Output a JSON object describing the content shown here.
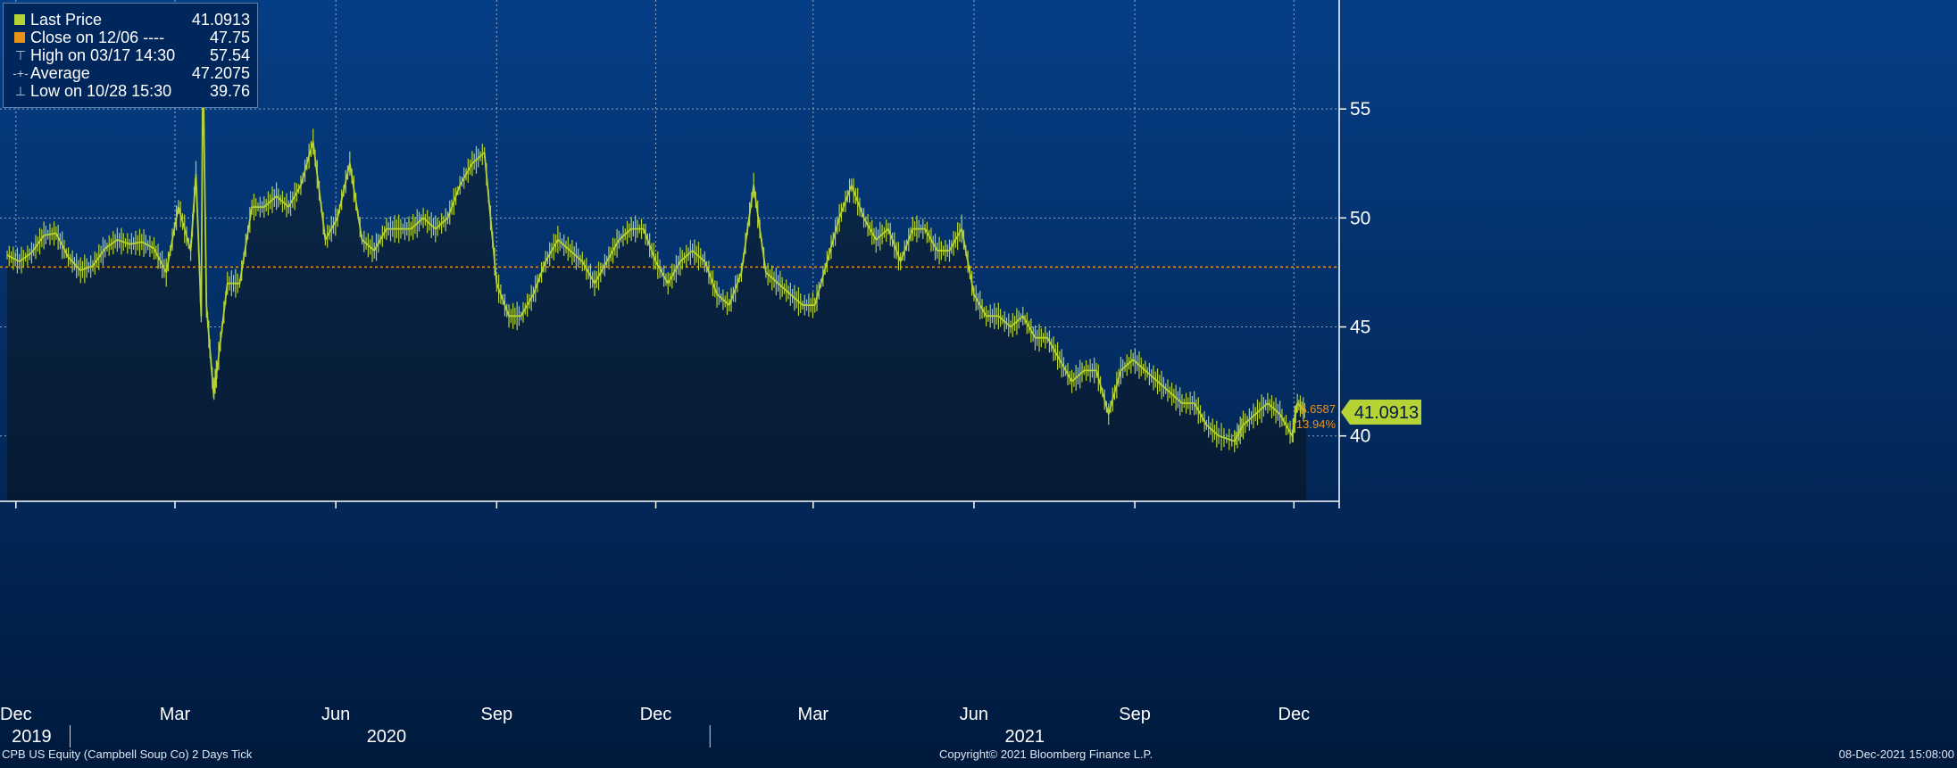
{
  "colors": {
    "background_top": "#063e86",
    "background_bottom": "#001a3d",
    "line": "#b5d334",
    "fill_top": "#0c2a4f",
    "fill_bottom": "#061a33",
    "close_line": "#e8921a",
    "grid": "#b8c6da"
  },
  "legend": {
    "items": [
      {
        "icon": "green-square-icon",
        "label": "Last Price",
        "value": "41.0913"
      },
      {
        "icon": "orange-square-icon",
        "label": "Close on 12/06 ----",
        "value": "47.75"
      },
      {
        "icon": "high-marker-icon",
        "label": "High on 03/17 14:30",
        "value": "57.54"
      },
      {
        "icon": "average-marker-icon",
        "label": "Average",
        "value": "47.2075"
      },
      {
        "icon": "low-marker-icon",
        "label": "Low on 10/28 15:30",
        "value": "39.76"
      }
    ]
  },
  "footer": {
    "left": "CPB US Equity (Campbell Soup Co) 2 Days  Tick",
    "center": "Copyright© 2021 Bloomberg Finance L.P.",
    "right": "08-Dec-2021 15:08:00"
  },
  "price_tag": {
    "last": "41.0913",
    "change": "-6.6587",
    "change_pct": "-13.94%"
  },
  "chart_data": {
    "type": "line",
    "ylim": [
      37,
      60
    ],
    "y_ticks": [
      40,
      45,
      50,
      55
    ],
    "grid": true,
    "legend_position": "top-left",
    "x_range": [
      "2019-11-26",
      "2021-12-08"
    ],
    "month_ticks": [
      {
        "label": "Dec",
        "date": "2019-12-01"
      },
      {
        "label": "Mar",
        "date": "2020-03-01"
      },
      {
        "label": "Jun",
        "date": "2020-06-01"
      },
      {
        "label": "Sep",
        "date": "2020-09-01"
      },
      {
        "label": "Dec",
        "date": "2020-12-01"
      },
      {
        "label": "Mar",
        "date": "2021-03-01"
      },
      {
        "label": "Jun",
        "date": "2021-06-01"
      },
      {
        "label": "Sep",
        "date": "2021-09-01"
      },
      {
        "label": "Dec",
        "date": "2021-12-01"
      }
    ],
    "year_labels": [
      {
        "label": "2019",
        "date": "2019-12-10"
      },
      {
        "label": "2020",
        "date": "2020-06-30"
      },
      {
        "label": "2021",
        "date": "2021-06-30"
      }
    ],
    "year_dividers": [
      "2020-01-01",
      "2021-01-01"
    ],
    "close_reference": 47.75,
    "series": [
      {
        "points": [
          [
            "2019-11-26",
            48.3
          ],
          [
            "2019-12-03",
            48.0
          ],
          [
            "2019-12-10",
            48.4
          ],
          [
            "2019-12-17",
            49.2
          ],
          [
            "2019-12-24",
            49.3
          ],
          [
            "2019-12-31",
            48.2
          ],
          [
            "2020-01-07",
            47.6
          ],
          [
            "2020-01-14",
            47.8
          ],
          [
            "2020-01-21",
            48.6
          ],
          [
            "2020-01-28",
            49.0
          ],
          [
            "2020-02-04",
            48.8
          ],
          [
            "2020-02-11",
            48.9
          ],
          [
            "2020-02-18",
            48.6
          ],
          [
            "2020-02-25",
            47.5
          ],
          [
            "2020-03-03",
            50.5
          ],
          [
            "2020-03-10",
            48.5
          ],
          [
            "2020-03-13",
            52.0
          ],
          [
            "2020-03-16",
            45.5
          ],
          [
            "2020-03-17",
            57.54
          ],
          [
            "2020-03-19",
            46.0
          ],
          [
            "2020-03-23",
            42.0
          ],
          [
            "2020-03-25",
            43.0
          ],
          [
            "2020-03-31",
            47.0
          ],
          [
            "2020-04-07",
            47.0
          ],
          [
            "2020-04-14",
            50.5
          ],
          [
            "2020-04-21",
            50.5
          ],
          [
            "2020-04-28",
            51.0
          ],
          [
            "2020-05-05",
            50.5
          ],
          [
            "2020-05-12",
            51.5
          ],
          [
            "2020-05-19",
            53.5
          ],
          [
            "2020-05-26",
            49.0
          ],
          [
            "2020-06-02",
            50.0
          ],
          [
            "2020-06-09",
            52.5
          ],
          [
            "2020-06-16",
            49.0
          ],
          [
            "2020-06-23",
            48.5
          ],
          [
            "2020-06-30",
            49.5
          ],
          [
            "2020-07-07",
            49.5
          ],
          [
            "2020-07-14",
            49.5
          ],
          [
            "2020-07-21",
            50.0
          ],
          [
            "2020-07-28",
            49.5
          ],
          [
            "2020-08-04",
            50.0
          ],
          [
            "2020-08-11",
            51.5
          ],
          [
            "2020-08-18",
            52.5
          ],
          [
            "2020-08-25",
            53.0
          ],
          [
            "2020-09-01",
            47.0
          ],
          [
            "2020-09-08",
            45.5
          ],
          [
            "2020-09-15",
            45.5
          ],
          [
            "2020-09-22",
            46.5
          ],
          [
            "2020-09-29",
            48.0
          ],
          [
            "2020-10-06",
            49.0
          ],
          [
            "2020-10-13",
            48.5
          ],
          [
            "2020-10-20",
            48.0
          ],
          [
            "2020-10-27",
            47.0
          ],
          [
            "2020-11-03",
            48.0
          ],
          [
            "2020-11-10",
            49.0
          ],
          [
            "2020-11-17",
            49.5
          ],
          [
            "2020-11-24",
            49.5
          ],
          [
            "2020-12-01",
            48.0
          ],
          [
            "2020-12-08",
            47.0
          ],
          [
            "2020-12-15",
            48.0
          ],
          [
            "2020-12-22",
            48.5
          ],
          [
            "2020-12-29",
            48.0
          ],
          [
            "2021-01-05",
            46.5
          ],
          [
            "2021-01-12",
            46.0
          ],
          [
            "2021-01-19",
            47.5
          ],
          [
            "2021-01-26",
            51.5
          ],
          [
            "2021-02-02",
            47.5
          ],
          [
            "2021-02-09",
            47.0
          ],
          [
            "2021-02-16",
            46.5
          ],
          [
            "2021-02-23",
            46.0
          ],
          [
            "2021-03-02",
            46.0
          ],
          [
            "2021-03-09",
            48.0
          ],
          [
            "2021-03-16",
            50.0
          ],
          [
            "2021-03-23",
            51.5
          ],
          [
            "2021-03-30",
            50.0
          ],
          [
            "2021-04-06",
            49.0
          ],
          [
            "2021-04-13",
            49.5
          ],
          [
            "2021-04-20",
            48.0
          ],
          [
            "2021-04-27",
            49.5
          ],
          [
            "2021-05-04",
            49.5
          ],
          [
            "2021-05-11",
            48.5
          ],
          [
            "2021-05-18",
            48.5
          ],
          [
            "2021-05-25",
            49.5
          ],
          [
            "2021-06-01",
            46.5
          ],
          [
            "2021-06-08",
            45.5
          ],
          [
            "2021-06-15",
            45.5
          ],
          [
            "2021-06-22",
            45.0
          ],
          [
            "2021-06-29",
            45.5
          ],
          [
            "2021-07-06",
            44.5
          ],
          [
            "2021-07-13",
            44.5
          ],
          [
            "2021-07-20",
            43.5
          ],
          [
            "2021-07-27",
            42.5
          ],
          [
            "2021-08-03",
            43.0
          ],
          [
            "2021-08-10",
            43.0
          ],
          [
            "2021-08-17",
            41.0
          ],
          [
            "2021-08-24",
            43.0
          ],
          [
            "2021-08-31",
            43.5
          ],
          [
            "2021-09-07",
            43.0
          ],
          [
            "2021-09-14",
            42.5
          ],
          [
            "2021-09-21",
            42.0
          ],
          [
            "2021-09-28",
            41.5
          ],
          [
            "2021-10-05",
            41.5
          ],
          [
            "2021-10-12",
            40.5
          ],
          [
            "2021-10-19",
            40.0
          ],
          [
            "2021-10-28",
            39.76
          ],
          [
            "2021-11-02",
            40.5
          ],
          [
            "2021-11-09",
            41.0
          ],
          [
            "2021-11-16",
            41.5
          ],
          [
            "2021-11-23",
            41.0
          ],
          [
            "2021-11-30",
            40.0
          ],
          [
            "2021-12-03",
            41.5
          ],
          [
            "2021-12-08",
            41.0913
          ]
        ]
      }
    ]
  }
}
